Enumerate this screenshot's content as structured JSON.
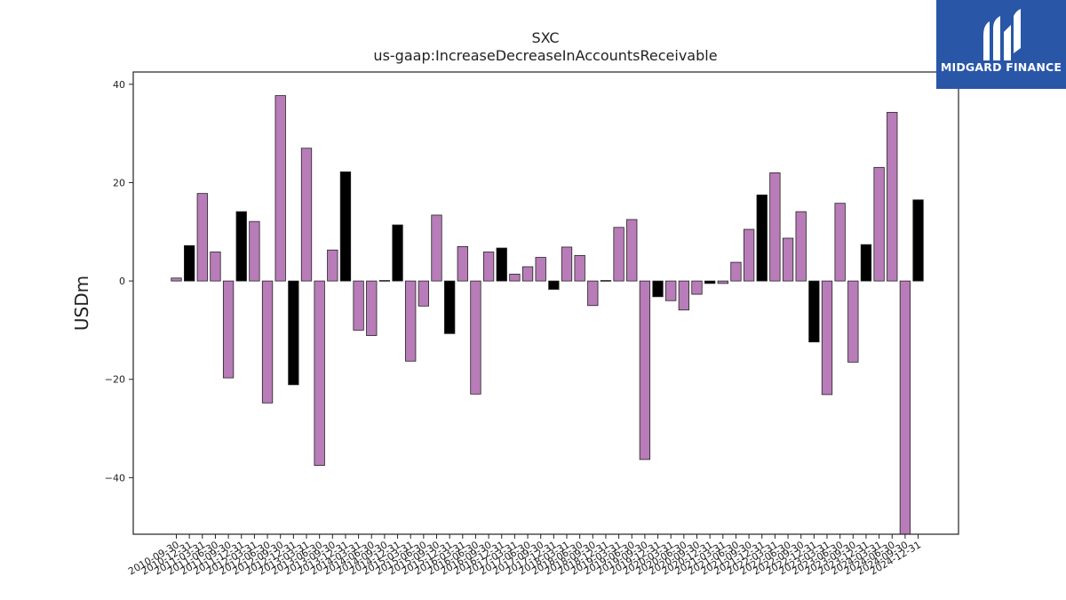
{
  "logo": {
    "text": "MIDGARD FINANCE"
  },
  "chart_data": {
    "type": "bar",
    "title": "SXC",
    "subtitle": "us-gaap:IncreaseDecreaseInAccountsReceivable",
    "ylabel": "USDm",
    "xlabel": "",
    "ylim": [
      -51.5,
      42.5
    ],
    "yticks": [
      -40,
      -20,
      0,
      20,
      40
    ],
    "grid": false,
    "colors": {
      "default": "#b87cb8",
      "highlight": "#000000",
      "edge": "#222222"
    },
    "categories": [
      "2010-09-30",
      "2010-12-31",
      "2011-03-31",
      "2011-06-30",
      "2011-09-30",
      "2011-12-31",
      "2012-03-31",
      "2012-06-30",
      "2012-09-30",
      "2012-12-31",
      "2013-03-31",
      "2013-06-30",
      "2013-09-30",
      "2013-12-31",
      "2014-03-31",
      "2014-06-30",
      "2014-09-30",
      "2014-12-31",
      "2015-03-31",
      "2015-06-30",
      "2015-09-30",
      "2015-12-31",
      "2016-03-31",
      "2016-06-30",
      "2016-09-30",
      "2016-12-31",
      "2017-03-31",
      "2017-06-30",
      "2017-09-30",
      "2017-12-31",
      "2018-03-31",
      "2018-06-30",
      "2018-09-30",
      "2018-12-31",
      "2019-03-31",
      "2019-06-30",
      "2019-09-30",
      "2019-12-31",
      "2020-03-31",
      "2020-06-30",
      "2020-09-30",
      "2020-12-31",
      "2021-03-31",
      "2021-06-30",
      "2021-09-30",
      "2021-12-31",
      "2022-03-31",
      "2022-06-30",
      "2022-09-30",
      "2022-12-31",
      "2023-03-31",
      "2023-06-30",
      "2023-09-30",
      "2023-12-31",
      "2024-03-31",
      "2024-06-30",
      "2024-09-30",
      "2024-12-31"
    ],
    "values": [
      0.6,
      7.2,
      17.8,
      5.9,
      -19.7,
      14.1,
      12.1,
      -24.8,
      37.7,
      -21.1,
      27.0,
      -37.5,
      6.3,
      22.2,
      -10.0,
      -11.1,
      0.1,
      11.4,
      -16.3,
      -5.1,
      13.4,
      -10.7,
      7.0,
      -23.0,
      5.9,
      6.7,
      1.4,
      2.9,
      4.8,
      -1.7,
      6.9,
      5.2,
      -5.0,
      0.1,
      10.9,
      12.5,
      -36.3,
      -3.2,
      -4.0,
      -5.9,
      -2.7,
      -0.5,
      -0.5,
      3.8,
      10.5,
      17.5,
      22.0,
      8.7,
      14.1,
      -12.4,
      -23.1,
      15.8,
      -16.5,
      7.4,
      23.1,
      34.3,
      -52.0,
      16.5
    ],
    "highlight": [
      false,
      true,
      false,
      false,
      false,
      true,
      false,
      false,
      false,
      true,
      false,
      false,
      false,
      true,
      false,
      false,
      true,
      true,
      false,
      false,
      false,
      true,
      false,
      false,
      false,
      true,
      false,
      false,
      false,
      true,
      false,
      false,
      false,
      true,
      false,
      false,
      false,
      true,
      false,
      false,
      false,
      true,
      false,
      false,
      false,
      true,
      false,
      false,
      false,
      true,
      false,
      false,
      false,
      true,
      false,
      false,
      false,
      true
    ]
  }
}
